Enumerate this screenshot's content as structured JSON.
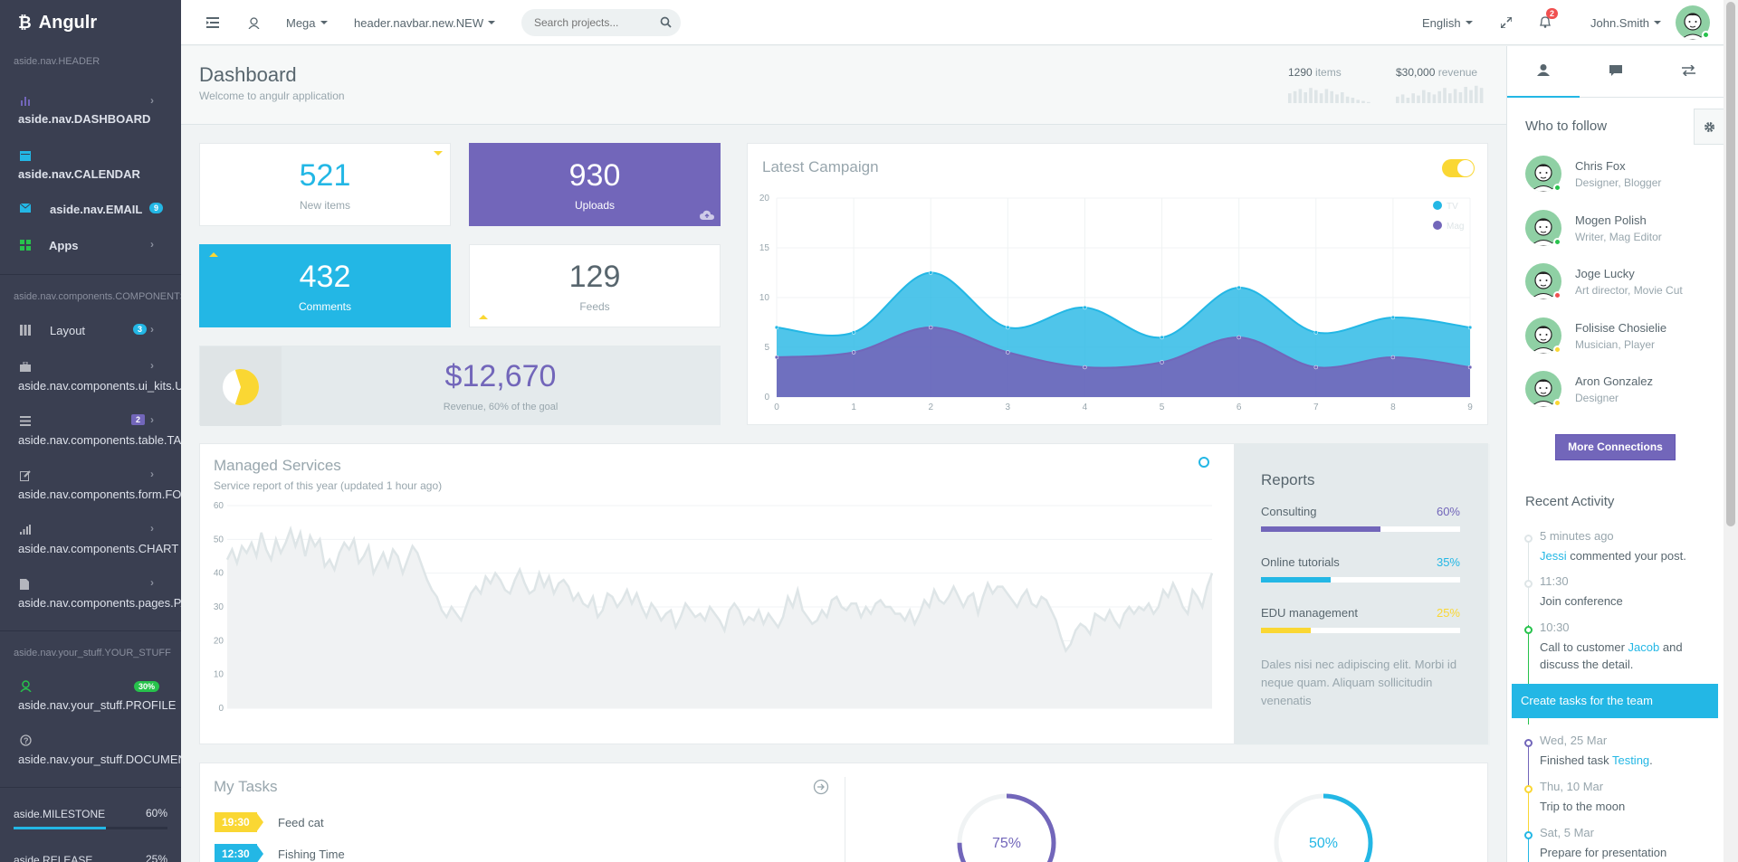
{
  "brand": {
    "name": "Angulr"
  },
  "sidebar": {
    "header_nav": "aside.nav.HEADER",
    "items_top": [
      {
        "label": "aside.nav.DASHBOARD"
      },
      {
        "label": "aside.nav.CALENDAR"
      },
      {
        "label": "aside.nav.EMAIL",
        "badge": "9"
      },
      {
        "label": "Apps"
      }
    ],
    "header_components": "aside.nav.components.COMPONENTS",
    "items_components": [
      {
        "label": "Layout",
        "badge": "3"
      },
      {
        "label": "aside.nav.components.ui_kits.UI_KITS"
      },
      {
        "label": "aside.nav.components.table.TABLE",
        "badge": "2"
      },
      {
        "label": "aside.nav.components.form.FORM"
      },
      {
        "label": "aside.nav.components.CHART"
      },
      {
        "label": "aside.nav.components.pages.PAGES"
      }
    ],
    "header_stuff": "aside.nav.your_stuff.YOUR_STUFF",
    "items_stuff": [
      {
        "label": "aside.nav.your_stuff.PROFILE",
        "badge": "30%"
      },
      {
        "label": "aside.nav.your_stuff.DOCUMENTS"
      }
    ],
    "milestone": {
      "label": "aside.MILESTONE",
      "value": "60%"
    },
    "release": {
      "label": "aside.RELEASE",
      "value": "25%"
    }
  },
  "header": {
    "mega": "Mega",
    "navbar_new": "header.navbar.new.NEW",
    "search_placeholder": "Search projects...",
    "language": "English",
    "notifications": "2",
    "user": "John.Smith"
  },
  "page": {
    "title": "Dashboard",
    "subtitle": "Welcome to angulr application",
    "items_count": "1290",
    "items_label": "items",
    "revenue_value": "$30,000",
    "revenue_label": "revenue"
  },
  "stats": [
    {
      "value": "521",
      "label": "New items"
    },
    {
      "value": "930",
      "label": "Uploads"
    },
    {
      "value": "432",
      "label": "Comments"
    },
    {
      "value": "129",
      "label": "Feeds"
    }
  ],
  "revenue": {
    "value": "$12,670",
    "label": "Revenue, 60% of the goal",
    "progress": 0.6
  },
  "campaign": {
    "title": "Latest Campaign",
    "toggle_on": true
  },
  "chart_data": [
    {
      "type": "area",
      "title": "Latest Campaign",
      "x": [
        0,
        1,
        2,
        3,
        4,
        5,
        6,
        7,
        8,
        9
      ],
      "series": [
        {
          "name": "TV",
          "color": "#23b7e5",
          "values": [
            7,
            6.5,
            12.5,
            7,
            9,
            6,
            11,
            6.5,
            8,
            7
          ]
        },
        {
          "name": "Mag",
          "color": "#7266ba",
          "values": [
            4,
            4.5,
            7,
            4.5,
            3,
            3.5,
            6,
            3,
            4,
            3
          ]
        }
      ],
      "ylim": [
        0,
        20
      ],
      "yticks": [
        "0",
        "5",
        "10",
        "15",
        "20"
      ],
      "xticks": [
        "0",
        "1",
        "2",
        "3",
        "4",
        "5",
        "6",
        "7",
        "8",
        "9"
      ],
      "legend": "top-right",
      "grid": true
    },
    {
      "type": "area",
      "title": "Managed Services",
      "subtitle": "Service report of this year (updated 1 hour ago)",
      "ylim": [
        0,
        60
      ],
      "yticks": [
        "0",
        "10",
        "20",
        "30",
        "40",
        "50",
        "60"
      ],
      "values": [
        44,
        47,
        43,
        48,
        46,
        49,
        45,
        52,
        47,
        44,
        50,
        46,
        49,
        53,
        48,
        52,
        45,
        51,
        48,
        50,
        42,
        44,
        41,
        46,
        49,
        47,
        50,
        43,
        45,
        48,
        40,
        43,
        46,
        42,
        47,
        45,
        40,
        44,
        48,
        46,
        42,
        38,
        35,
        33,
        29,
        27,
        30,
        28,
        26,
        30,
        34,
        36,
        34,
        39,
        37,
        40,
        38,
        35,
        34,
        38,
        41,
        37,
        34,
        35,
        40,
        36,
        39,
        34,
        37,
        38,
        36,
        32,
        34,
        31,
        30,
        33,
        27,
        29,
        34,
        33,
        30,
        32,
        35,
        31,
        34,
        30,
        27,
        31,
        29,
        26,
        28,
        29,
        24,
        27,
        31,
        29,
        27,
        28,
        26,
        30,
        28,
        26,
        23,
        29,
        31,
        29,
        25,
        27,
        26,
        29,
        25,
        28,
        26,
        24,
        27,
        33,
        30,
        35,
        29,
        27,
        25,
        26,
        29,
        27,
        32,
        33,
        30,
        29,
        31,
        31,
        27,
        30,
        28,
        31,
        32,
        30,
        30,
        28,
        28,
        26,
        29,
        25,
        28,
        32,
        30,
        35,
        32,
        31,
        33,
        36,
        33,
        30,
        33,
        34,
        28,
        33,
        37,
        34,
        36,
        36,
        34,
        32,
        30,
        33,
        35,
        31,
        30,
        33,
        32,
        29,
        26,
        21,
        17,
        19,
        23,
        25,
        24,
        22,
        28,
        27,
        26,
        29,
        26,
        24,
        28,
        30,
        28,
        30,
        29,
        31,
        28,
        30,
        35,
        33,
        37,
        34,
        30,
        28,
        35,
        33,
        30,
        36,
        40
      ],
      "grid": true
    }
  ],
  "managed": {
    "title": "Managed Services",
    "subtitle": "Service report of this year (updated 1 hour ago)"
  },
  "reports": {
    "title": "Reports",
    "items": [
      {
        "label": "Consulting",
        "value": "60%",
        "progress": 0.6,
        "color": "#7266ba"
      },
      {
        "label": "Online tutorials",
        "value": "35%",
        "progress": 0.35,
        "color": "#23b7e5"
      },
      {
        "label": "EDU management",
        "value": "25%",
        "progress": 0.25,
        "color": "#fad733"
      }
    ],
    "note": "Dales nisi nec adipiscing elit. Morbi id neque quam. Aliquam sollicitudin venenatis"
  },
  "tasks": {
    "title": "My Tasks",
    "items": [
      {
        "time": "19:30",
        "name": "Feed cat",
        "color": "#fad733"
      },
      {
        "time": "12:30",
        "name": "Fishing Time",
        "color": "#23b7e5"
      }
    ],
    "gauges": [
      {
        "value": "75%",
        "progress": 0.75,
        "color": "#7266ba"
      },
      {
        "value": "50%",
        "progress": 0.5,
        "color": "#23b7e5"
      }
    ]
  },
  "right_panel": {
    "who_title": "Who to follow",
    "people": [
      {
        "name": "Chris Fox",
        "role": "Designer, Blogger",
        "status": "#27c24c"
      },
      {
        "name": "Mogen Polish",
        "role": "Writer, Mag Editor",
        "status": "#27c24c"
      },
      {
        "name": "Joge Lucky",
        "role": "Art director, Movie Cut",
        "status": "#f05050"
      },
      {
        "name": "Folisise Chosielie",
        "role": "Musician, Player",
        "status": "#fad733"
      },
      {
        "name": "Aron Gonzalez",
        "role": "Designer",
        "status": "#fad733"
      }
    ],
    "more_button": "More Connections",
    "recent_title": "Recent Activity",
    "activity": [
      {
        "time": "5 minutes ago",
        "pre": "",
        "link": "Jessi",
        "post": " commented your post."
      },
      {
        "time": "11:30",
        "pre": "Join conference",
        "link": "",
        "post": ""
      },
      {
        "time": "10:30",
        "pre": "Call to customer ",
        "link": "Jacob",
        "post": " and discuss the detail."
      },
      {
        "time": "Wed, 25 Mar",
        "pre": "Finished task ",
        "link": "Testing",
        "post": "."
      },
      {
        "time": "Thu, 10 Mar",
        "pre": "Trip to the moon",
        "link": "",
        "post": ""
      },
      {
        "time": "Sat, 5 Mar",
        "pre": "Prepare for presentation",
        "link": "",
        "post": ""
      }
    ],
    "highlight": "Create tasks for the team"
  },
  "colors": {
    "primary": "#7266ba",
    "info": "#23b7e5",
    "warning": "#fad733",
    "success": "#27c24c",
    "sidebar": "#3a3f51"
  }
}
